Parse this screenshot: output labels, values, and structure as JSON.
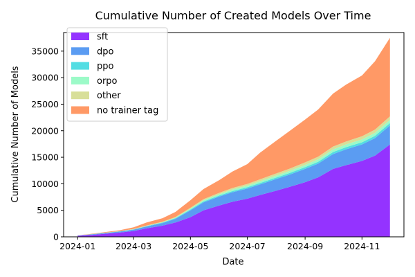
{
  "chart_data": {
    "type": "area",
    "stacked": true,
    "title": "Cumulative Number of Created Models Over Time",
    "xlabel": "Date",
    "ylabel": "Cumulative Number of Models",
    "xlim": [
      "2023-12-17",
      "2024-12-16"
    ],
    "ylim": [
      0,
      38500
    ],
    "x_ticks": [
      "2024-01-01",
      "2024-03-01",
      "2024-05-01",
      "2024-07-01",
      "2024-09-01",
      "2024-11-01"
    ],
    "x_tick_labels": [
      "2024-01",
      "2024-03",
      "2024-05",
      "2024-07",
      "2024-09",
      "2024-11"
    ],
    "y_ticks": [
      0,
      5000,
      10000,
      15000,
      20000,
      25000,
      30000,
      35000
    ],
    "y_tick_labels": [
      "0",
      "5000",
      "10000",
      "15000",
      "20000",
      "25000",
      "30000",
      "35000"
    ],
    "legend_position": "top-left",
    "grid": false,
    "x": [
      "2024-01-01",
      "2024-01-15",
      "2024-02-01",
      "2024-02-15",
      "2024-03-01",
      "2024-03-15",
      "2024-04-01",
      "2024-04-15",
      "2024-05-01",
      "2024-05-15",
      "2024-06-01",
      "2024-06-15",
      "2024-07-01",
      "2024-07-15",
      "2024-08-01",
      "2024-08-15",
      "2024-09-01",
      "2024-09-15",
      "2024-10-01",
      "2024-10-15",
      "2024-11-01",
      "2024-11-15",
      "2024-12-01"
    ],
    "series": [
      {
        "name": "sft",
        "color": "#9433ff",
        "values": [
          200,
          350,
          600,
          800,
          1100,
          1600,
          2100,
          2700,
          3700,
          5000,
          5900,
          6600,
          7200,
          7900,
          8700,
          9400,
          10300,
          11200,
          12800,
          13500,
          14300,
          15300,
          17400
        ]
      },
      {
        "name": "dpo",
        "color": "#5b9cf2",
        "values": [
          50,
          100,
          150,
          200,
          250,
          350,
          500,
          700,
          1300,
          1500,
          1700,
          1800,
          1900,
          2000,
          2200,
          2300,
          2500,
          2600,
          2800,
          3000,
          3100,
          3300,
          3600
        ]
      },
      {
        "name": "ppo",
        "color": "#53dde3",
        "values": [
          10,
          20,
          30,
          40,
          60,
          80,
          100,
          120,
          150,
          180,
          200,
          220,
          240,
          260,
          280,
          300,
          330,
          350,
          380,
          400,
          420,
          440,
          460
        ]
      },
      {
        "name": "orpo",
        "color": "#9cfac8",
        "values": [
          0,
          0,
          0,
          0,
          10,
          20,
          40,
          80,
          150,
          200,
          240,
          280,
          300,
          340,
          360,
          400,
          430,
          460,
          500,
          520,
          540,
          560,
          580
        ]
      },
      {
        "name": "other",
        "color": "#d8df99",
        "values": [
          10,
          20,
          30,
          40,
          60,
          80,
          110,
          140,
          180,
          220,
          260,
          300,
          330,
          370,
          400,
          430,
          470,
          500,
          540,
          560,
          590,
          620,
          660
        ]
      },
      {
        "name": "no trainer tag",
        "color": "#ff9966",
        "values": [
          30,
          60,
          120,
          160,
          320,
          570,
          650,
          960,
          1420,
          1900,
          2400,
          3100,
          3730,
          5030,
          6160,
          7070,
          8070,
          8890,
          9980,
          10720,
          11450,
          12880,
          14800
        ]
      }
    ]
  }
}
